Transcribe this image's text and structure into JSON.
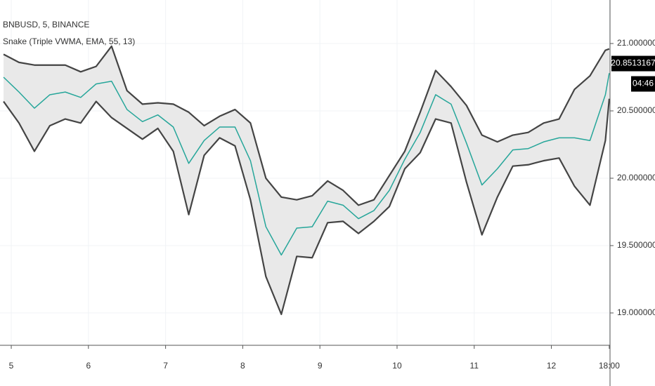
{
  "chart_data": {
    "type": "line",
    "title": "BNBUSD, 5, BINANCE",
    "subtitle": "Snake (Triple VWMA, EMA, 55, 13)",
    "x": [
      4.9,
      5.1,
      5.3,
      5.5,
      5.7,
      5.9,
      6.1,
      6.3,
      6.5,
      6.7,
      6.9,
      7.1,
      7.3,
      7.5,
      7.7,
      7.9,
      8.1,
      8.3,
      8.5,
      8.7,
      8.9,
      9.1,
      9.3,
      9.5,
      9.7,
      9.9,
      10.1,
      10.3,
      10.5,
      10.7,
      10.9,
      11.1,
      11.3,
      11.5,
      11.7,
      11.9,
      12.1,
      12.3,
      12.5,
      12.7,
      12.75
    ],
    "series": [
      {
        "color": "#444444",
        "values": [
          20.92,
          20.86,
          20.84,
          20.84,
          20.84,
          20.79,
          20.83,
          20.98,
          20.65,
          20.55,
          20.56,
          20.55,
          20.49,
          20.39,
          20.46,
          20.51,
          20.41,
          20.0,
          19.86,
          19.84,
          19.87,
          19.98,
          19.91,
          19.8,
          19.84,
          20.02,
          20.2,
          20.49,
          20.8,
          20.68,
          20.54,
          20.32,
          20.27,
          20.32,
          20.34,
          20.41,
          20.44,
          20.66,
          20.76,
          20.95,
          20.96
        ]
      },
      {
        "color": "#444444",
        "values": [
          20.57,
          20.41,
          20.2,
          20.39,
          20.44,
          20.41,
          20.57,
          20.45,
          20.37,
          20.29,
          20.37,
          20.2,
          19.73,
          20.17,
          20.3,
          20.24,
          19.84,
          19.27,
          18.99,
          19.42,
          19.41,
          19.67,
          19.68,
          19.59,
          19.68,
          19.79,
          20.07,
          20.19,
          20.44,
          20.41,
          19.97,
          19.58,
          19.86,
          20.09,
          20.1,
          20.13,
          20.15,
          19.94,
          19.8,
          20.28,
          20.59
        ]
      },
      {
        "color": "#26a69a",
        "values": [
          20.75,
          20.64,
          20.52,
          20.62,
          20.64,
          20.6,
          20.7,
          20.72,
          20.51,
          20.42,
          20.47,
          20.38,
          20.11,
          20.28,
          20.38,
          20.38,
          20.13,
          19.64,
          19.43,
          19.63,
          19.64,
          19.83,
          19.8,
          19.7,
          19.76,
          19.91,
          20.14,
          20.34,
          20.62,
          20.55,
          20.26,
          19.95,
          20.07,
          20.21,
          20.22,
          20.27,
          20.3,
          20.3,
          20.28,
          20.62,
          20.78
        ]
      }
    ],
    "band_fill": "#e9e9e9",
    "xlim": [
      4.854,
      12.76
    ],
    "xticks": [
      5,
      6,
      7,
      8,
      9,
      10,
      11,
      12,
      {
        "value": 12.75,
        "label": "18:00"
      }
    ],
    "ylim": [
      18.76,
      21.323
    ],
    "yticks": [
      {
        "value": 21,
        "label": "21.0000000"
      },
      {
        "value": 20.5,
        "label": "20.5000000"
      },
      {
        "value": 20,
        "label": "20.0000000"
      },
      {
        "value": 19.5,
        "label": "19.5000000"
      },
      {
        "value": 19,
        "label": "19.0000000"
      }
    ],
    "grid": true,
    "last_price": 20.8513167,
    "countdown": "04:46"
  }
}
